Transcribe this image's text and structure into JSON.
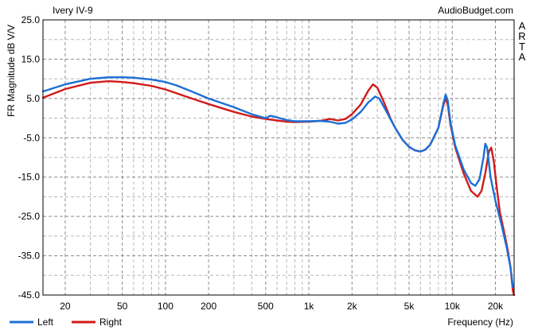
{
  "chart_data": {
    "type": "line",
    "title": "Ivery IV-9",
    "source": "AudioBudget.com",
    "side_label": [
      "A",
      "R",
      "T",
      "A"
    ],
    "ylabel": "FR Magnitude dB V/V",
    "xlabel": "Frequency (Hz)",
    "x_scale": "log",
    "xlim": [
      14,
      27000
    ],
    "ylim": [
      -45,
      25
    ],
    "x_ticks": [
      {
        "value": 20,
        "label": "20"
      },
      {
        "value": 50,
        "label": "50"
      },
      {
        "value": 100,
        "label": "100"
      },
      {
        "value": 200,
        "label": "200"
      },
      {
        "value": 500,
        "label": "500"
      },
      {
        "value": 1000,
        "label": "1k"
      },
      {
        "value": 2000,
        "label": "2k"
      },
      {
        "value": 5000,
        "label": "5k"
      },
      {
        "value": 10000,
        "label": "10k"
      },
      {
        "value": 20000,
        "label": "20k"
      }
    ],
    "y_ticks": [
      {
        "value": 25,
        "label": "25.0"
      },
      {
        "value": 15,
        "label": "15.0"
      },
      {
        "value": 5,
        "label": "5.0"
      },
      {
        "value": -5,
        "label": "-5.0"
      },
      {
        "value": -15,
        "label": "-15.0"
      },
      {
        "value": -25,
        "label": "-25.0"
      },
      {
        "value": -35,
        "label": "-35.0"
      },
      {
        "value": -45,
        "label": "-45.0"
      }
    ],
    "grid": true,
    "legend_position": "bottom-left",
    "series": [
      {
        "name": "Left",
        "color": "#1c6fd6",
        "points": [
          [
            14,
            6.8
          ],
          [
            20,
            8.6
          ],
          [
            30,
            10.0
          ],
          [
            40,
            10.4
          ],
          [
            50,
            10.4
          ],
          [
            60,
            10.3
          ],
          [
            80,
            9.8
          ],
          [
            100,
            9.2
          ],
          [
            120,
            8.3
          ],
          [
            150,
            6.9
          ],
          [
            200,
            5.0
          ],
          [
            300,
            2.8
          ],
          [
            400,
            1.0
          ],
          [
            500,
            0.0
          ],
          [
            540,
            0.6
          ],
          [
            600,
            0.2
          ],
          [
            700,
            -0.5
          ],
          [
            800,
            -0.8
          ],
          [
            1000,
            -0.8
          ],
          [
            1200,
            -0.7
          ],
          [
            1400,
            -0.9
          ],
          [
            1600,
            -1.4
          ],
          [
            1800,
            -1.2
          ],
          [
            2000,
            -0.3
          ],
          [
            2300,
            1.6
          ],
          [
            2600,
            4.0
          ],
          [
            2900,
            5.5
          ],
          [
            3100,
            5.0
          ],
          [
            3500,
            1.5
          ],
          [
            4000,
            -2.5
          ],
          [
            4500,
            -5.5
          ],
          [
            5000,
            -7.3
          ],
          [
            5500,
            -8.2
          ],
          [
            6000,
            -8.5
          ],
          [
            6500,
            -8.0
          ],
          [
            7000,
            -6.8
          ],
          [
            8000,
            -2.5
          ],
          [
            8700,
            4.0
          ],
          [
            9000,
            6.0
          ],
          [
            9300,
            4.5
          ],
          [
            9700,
            -1.0
          ],
          [
            10500,
            -7.0
          ],
          [
            12000,
            -13.0
          ],
          [
            13500,
            -16.5
          ],
          [
            14500,
            -17.2
          ],
          [
            15500,
            -15.5
          ],
          [
            16500,
            -10.0
          ],
          [
            17000,
            -6.5
          ],
          [
            17500,
            -7.5
          ],
          [
            18500,
            -15.0
          ],
          [
            20000,
            -21.0
          ],
          [
            22000,
            -27.0
          ],
          [
            24000,
            -33.0
          ],
          [
            25500,
            -38.0
          ],
          [
            26500,
            -43.0
          ]
        ]
      },
      {
        "name": "Right",
        "color": "#d31a1a",
        "points": [
          [
            14,
            5.2
          ],
          [
            20,
            7.4
          ],
          [
            30,
            9.0
          ],
          [
            40,
            9.4
          ],
          [
            50,
            9.2
          ],
          [
            60,
            8.9
          ],
          [
            80,
            8.2
          ],
          [
            100,
            7.3
          ],
          [
            120,
            6.3
          ],
          [
            150,
            5.1
          ],
          [
            200,
            3.6
          ],
          [
            300,
            1.6
          ],
          [
            400,
            0.4
          ],
          [
            500,
            -0.2
          ],
          [
            600,
            -0.6
          ],
          [
            700,
            -0.9
          ],
          [
            800,
            -1.0
          ],
          [
            1000,
            -0.9
          ],
          [
            1200,
            -0.7
          ],
          [
            1400,
            -0.2
          ],
          [
            1600,
            -0.6
          ],
          [
            1800,
            -0.2
          ],
          [
            2000,
            1.0
          ],
          [
            2300,
            3.5
          ],
          [
            2600,
            7.0
          ],
          [
            2800,
            8.6
          ],
          [
            3000,
            7.8
          ],
          [
            3300,
            4.5
          ],
          [
            3700,
            0.0
          ],
          [
            4000,
            -2.5
          ],
          [
            4500,
            -5.5
          ],
          [
            5000,
            -7.3
          ],
          [
            5500,
            -8.2
          ],
          [
            6000,
            -8.5
          ],
          [
            6500,
            -8.0
          ],
          [
            7000,
            -6.8
          ],
          [
            8000,
            -2.5
          ],
          [
            8700,
            3.5
          ],
          [
            9000,
            5.0
          ],
          [
            9300,
            3.5
          ],
          [
            9700,
            -1.5
          ],
          [
            10500,
            -7.5
          ],
          [
            12000,
            -14.0
          ],
          [
            13500,
            -18.5
          ],
          [
            15000,
            -20.0
          ],
          [
            16000,
            -18.5
          ],
          [
            17000,
            -14.0
          ],
          [
            18000,
            -8.5
          ],
          [
            18700,
            -7.5
          ],
          [
            19500,
            -11.0
          ],
          [
            20500,
            -18.0
          ],
          [
            21500,
            -24.0
          ],
          [
            23000,
            -29.0
          ],
          [
            24500,
            -34.0
          ],
          [
            25500,
            -38.0
          ],
          [
            26500,
            -44.0
          ],
          [
            27000,
            -45.0
          ]
        ]
      }
    ]
  }
}
